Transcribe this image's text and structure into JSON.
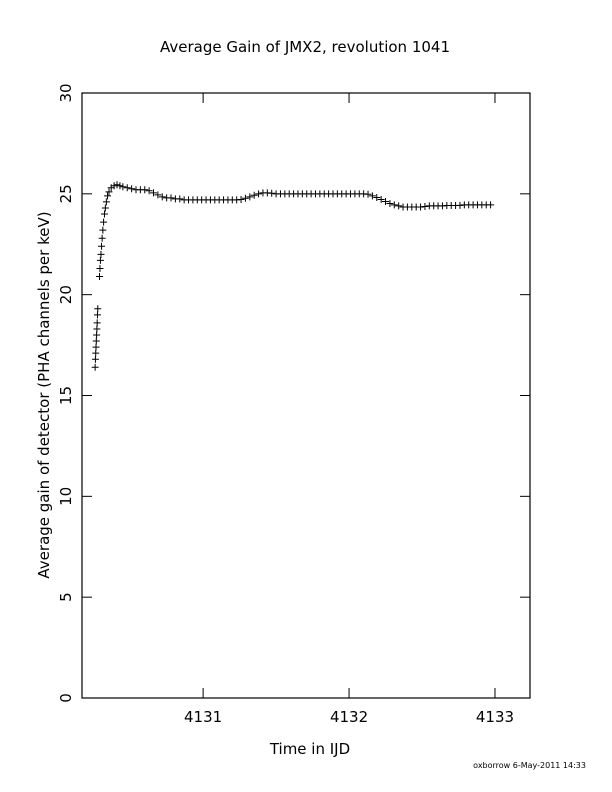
{
  "chart_data": {
    "type": "scatter",
    "title": "Average Gain of JMX2, revolution 1041",
    "xlabel": "Time in IJD",
    "ylabel": "Average gain of detector (PHA channels per keV)",
    "footer": "oxborrow  6-May-2011 14:33",
    "marker": "+",
    "color": "#000000",
    "xlim": [
      4130.17,
      4133.24
    ],
    "ylim": [
      0,
      30
    ],
    "xticks": [
      4131,
      4132,
      4133
    ],
    "yticks": [
      0,
      5,
      10,
      15,
      20,
      25,
      30
    ],
    "x": [
      4130.26,
      4130.262,
      4130.264,
      4130.266,
      4130.268,
      4130.27,
      4130.272,
      4130.274,
      4130.276,
      4130.278,
      4130.29,
      4130.293,
      4130.296,
      4130.3,
      4130.304,
      4130.308,
      4130.313,
      4130.318,
      4130.324,
      4130.33,
      4130.337,
      4130.345,
      4130.355,
      4130.37,
      4130.39,
      4130.41,
      4130.43,
      4130.45,
      4130.48,
      4130.51,
      4130.54,
      4130.57,
      4130.6,
      4130.63,
      4130.66,
      4130.69,
      4130.72,
      4130.75,
      4130.78,
      4130.81,
      4130.84,
      4130.87,
      4130.9,
      4130.93,
      4130.96,
      4130.99,
      4131.02,
      4131.05,
      4131.08,
      4131.11,
      4131.14,
      4131.17,
      4131.2,
      4131.23,
      4131.26,
      4131.29,
      4131.32,
      4131.35,
      4131.38,
      4131.41,
      4131.44,
      4131.47,
      4131.5,
      4131.53,
      4131.56,
      4131.59,
      4131.62,
      4131.65,
      4131.68,
      4131.71,
      4131.74,
      4131.77,
      4131.8,
      4131.83,
      4131.86,
      4131.89,
      4131.92,
      4131.95,
      4131.98,
      4132.01,
      4132.04,
      4132.07,
      4132.1,
      4132.13,
      4132.16,
      4132.19,
      4132.22,
      4132.25,
      4132.28,
      4132.31,
      4132.34,
      4132.37,
      4132.4,
      4132.43,
      4132.46,
      4132.49,
      4132.52,
      4132.55,
      4132.58,
      4132.61,
      4132.64,
      4132.67,
      4132.7,
      4132.73,
      4132.76,
      4132.79,
      4132.82,
      4132.85,
      4132.88,
      4132.91,
      4132.94,
      4132.97
    ],
    "values": [
      16.4,
      16.8,
      17.1,
      17.4,
      17.7,
      18.0,
      18.3,
      18.6,
      19.0,
      19.3,
      20.9,
      21.3,
      21.7,
      22.0,
      22.4,
      22.8,
      23.2,
      23.6,
      24.0,
      24.3,
      24.6,
      24.9,
      25.1,
      25.3,
      25.4,
      25.45,
      25.4,
      25.35,
      25.3,
      25.25,
      25.2,
      25.2,
      25.2,
      25.15,
      25.05,
      24.95,
      24.85,
      24.8,
      24.8,
      24.75,
      24.75,
      24.7,
      24.7,
      24.7,
      24.7,
      24.7,
      24.7,
      24.7,
      24.7,
      24.7,
      24.7,
      24.7,
      24.7,
      24.7,
      24.72,
      24.78,
      24.85,
      24.93,
      25.0,
      25.05,
      25.05,
      25.03,
      25.0,
      25.0,
      25.0,
      25.0,
      25.0,
      25.0,
      25.0,
      25.0,
      25.0,
      25.0,
      25.0,
      25.0,
      25.0,
      25.0,
      25.0,
      25.0,
      25.0,
      25.0,
      25.0,
      25.0,
      25.0,
      24.98,
      24.9,
      24.82,
      24.72,
      24.62,
      24.52,
      24.45,
      24.4,
      24.35,
      24.35,
      24.35,
      24.35,
      24.35,
      24.37,
      24.4,
      24.4,
      24.4,
      24.4,
      24.42,
      24.42,
      24.42,
      24.43,
      24.45,
      24.45,
      24.45,
      24.45,
      24.45,
      24.45,
      24.45
    ]
  }
}
